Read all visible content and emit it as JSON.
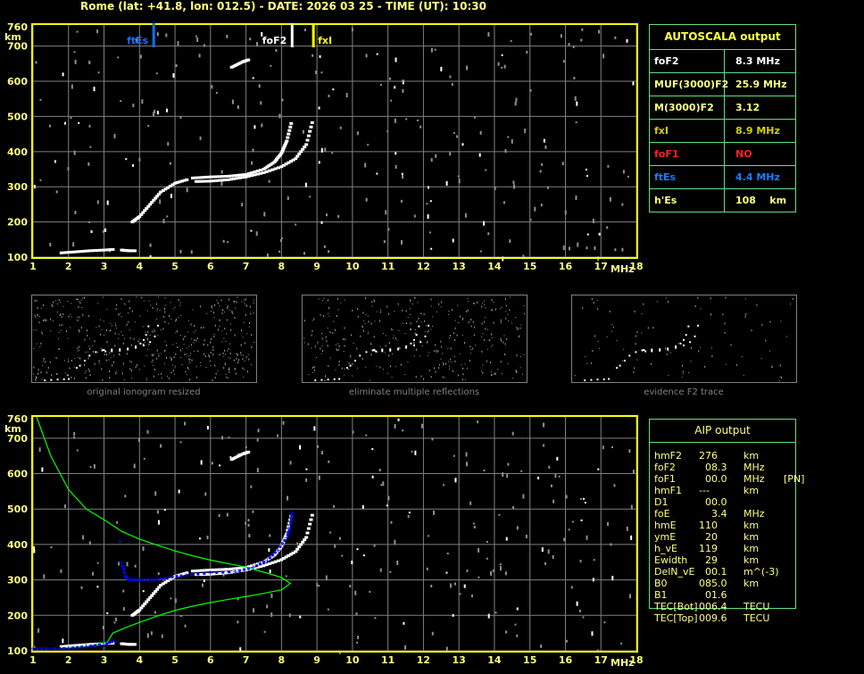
{
  "header": {
    "title": "Rome (lat: +41.8, lon: 012.5) - DATE: 2026 03 25 - TIME (UT): 10:30"
  },
  "chart_data": [
    {
      "type": "scatter",
      "name": "ionogram",
      "xlabel": "MHz",
      "ylabel": "km",
      "xlim": [
        1,
        18
      ],
      "ylim": [
        100,
        760
      ],
      "xticks": [
        "1",
        "2",
        "3",
        "4",
        "5",
        "6",
        "7",
        "8",
        "9",
        "10",
        "11",
        "12",
        "13",
        "14",
        "15",
        "16",
        "17",
        "18"
      ],
      "yticks": [
        "100",
        "200",
        "300",
        "400",
        "500",
        "600",
        "700",
        "760"
      ],
      "grid": true,
      "markers": [
        {
          "label": "ftEs",
          "freq": 4.4,
          "color": "#1070ff"
        },
        {
          "label": "foF2",
          "freq": 8.3,
          "color": "#ffffff"
        },
        {
          "label": "fxI",
          "freq": 8.9,
          "color": "#ffff00"
        }
      ],
      "traces": {
        "es": [
          [
            1.8,
            112
          ],
          [
            2.2,
            115
          ],
          [
            2.6,
            118
          ],
          [
            3.0,
            120
          ],
          [
            3.3,
            122
          ]
        ],
        "es2": [
          [
            3.5,
            120
          ],
          [
            3.7,
            118
          ],
          [
            3.9,
            118
          ]
        ],
        "f1": [
          [
            3.8,
            200
          ],
          [
            4.0,
            215
          ],
          [
            4.3,
            250
          ],
          [
            4.6,
            285
          ],
          [
            5.0,
            310
          ],
          [
            5.4,
            322
          ]
        ],
        "o": [
          [
            5.5,
            325
          ],
          [
            6.0,
            328
          ],
          [
            6.5,
            330
          ],
          [
            7.0,
            335
          ],
          [
            7.5,
            350
          ],
          [
            7.8,
            370
          ],
          [
            8.0,
            395
          ],
          [
            8.15,
            430
          ],
          [
            8.3,
            490
          ]
        ],
        "x": [
          [
            5.6,
            315
          ],
          [
            6.0,
            316
          ],
          [
            6.5,
            320
          ],
          [
            7.0,
            328
          ],
          [
            7.5,
            340
          ],
          [
            8.0,
            357
          ],
          [
            8.4,
            380
          ],
          [
            8.7,
            420
          ],
          [
            8.9,
            495
          ]
        ],
        "spur": [
          [
            6.6,
            640
          ],
          [
            6.9,
            655
          ],
          [
            7.1,
            662
          ]
        ]
      },
      "profile": [
        [
          1.1,
          760
        ],
        [
          1.5,
          650
        ],
        [
          2.0,
          555
        ],
        [
          2.5,
          500
        ],
        [
          3.0,
          470
        ],
        [
          3.5,
          437
        ],
        [
          4.0,
          415
        ],
        [
          4.5,
          398
        ],
        [
          5.0,
          382
        ],
        [
          5.5,
          368
        ],
        [
          6.0,
          356
        ],
        [
          6.5,
          346
        ],
        [
          7.0,
          336
        ],
        [
          7.5,
          322
        ],
        [
          8.0,
          307
        ],
        [
          8.25,
          290
        ],
        [
          8.0,
          272
        ],
        [
          7.5,
          262
        ],
        [
          7.0,
          253
        ],
        [
          6.5,
          245
        ],
        [
          6.0,
          236
        ],
        [
          5.5,
          226
        ],
        [
          5.0,
          214
        ],
        [
          4.5,
          198
        ],
        [
          4.0,
          180
        ],
        [
          3.6,
          165
        ],
        [
          3.25,
          150
        ],
        [
          3.1,
          125
        ],
        [
          2.5,
          112
        ],
        [
          1.8,
          108
        ]
      ],
      "fitted": [
        [
          1.0,
          106
        ],
        [
          1.5,
          106
        ],
        [
          2.0,
          107
        ],
        [
          2.5,
          112
        ],
        [
          3.0,
          118
        ],
        [
          3.3,
          128
        ],
        [
          3.45,
          410
        ],
        [
          3.5,
          348
        ],
        [
          3.6,
          312
        ],
        [
          3.7,
          300
        ],
        [
          4.0,
          300
        ],
        [
          4.4,
          300
        ],
        [
          4.8,
          307
        ],
        [
          5.3,
          313
        ],
        [
          6.0,
          320
        ],
        [
          6.7,
          323
        ],
        [
          7.2,
          335
        ],
        [
          7.6,
          355
        ],
        [
          7.9,
          385
        ],
        [
          8.15,
          420
        ],
        [
          8.25,
          450
        ],
        [
          8.3,
          490
        ]
      ]
    }
  ],
  "autoscala": {
    "title": "AUTOSCALA output",
    "rows": [
      {
        "key": "foF2",
        "value": "8.3 MHz",
        "color": "#ffffff"
      },
      {
        "key": "MUF(3000)F2",
        "value": "25.9 MHz",
        "color": "#ffff80"
      },
      {
        "key": "M(3000)F2",
        "value": "3.12",
        "color": "#ffff80"
      },
      {
        "key": "fxI",
        "value": "8.9 MHz",
        "color": "#d0d000"
      },
      {
        "key": "foF1",
        "value": "NO",
        "color": "#ff2020"
      },
      {
        "key": "ftEs",
        "value": "4.4 MHz",
        "color": "#1080ff"
      },
      {
        "key": "h'Es",
        "value": "108    km",
        "color": "#ffff80"
      }
    ]
  },
  "thumbnails": [
    {
      "caption": "original ionogram resized"
    },
    {
      "caption": "eliminate multiple reflections"
    },
    {
      "caption": "evidence F2 trace"
    }
  ],
  "aip": {
    "title": "AIP output",
    "rows": [
      [
        "hmF2",
        "276",
        "km",
        ""
      ],
      [
        "foF2",
        "  08.3",
        "MHz",
        ""
      ],
      [
        "foF1",
        "  00.0",
        "MHz",
        "[PN]"
      ],
      [
        "hmF1",
        "---",
        "km",
        ""
      ],
      [
        "D1",
        "  00.0",
        "",
        ""
      ],
      [
        "foE",
        "    3.4",
        "MHz",
        ""
      ],
      [
        "hmE",
        "110",
        "km",
        ""
      ],
      [
        "ymE",
        "  20",
        "km",
        ""
      ],
      [
        "h_vE",
        "119",
        "km",
        ""
      ],
      [
        "Ewidth",
        "  29",
        "km",
        ""
      ],
      [
        "DelN_vE",
        "  00.1",
        "m^(-3)",
        ""
      ],
      [
        "B0",
        "085.0",
        "km",
        ""
      ],
      [
        "B1",
        "  01.6",
        "",
        ""
      ],
      [
        "TEC[Bot]",
        "006.4",
        "TECU",
        ""
      ],
      [
        "TEC[Top]",
        "009.6",
        "TECU",
        ""
      ]
    ]
  },
  "colors": {
    "axis": "#ffff00",
    "grid": "#808080",
    "profile": "#00ff00",
    "fitted": "#0000ff",
    "trace": "#ffffff"
  }
}
